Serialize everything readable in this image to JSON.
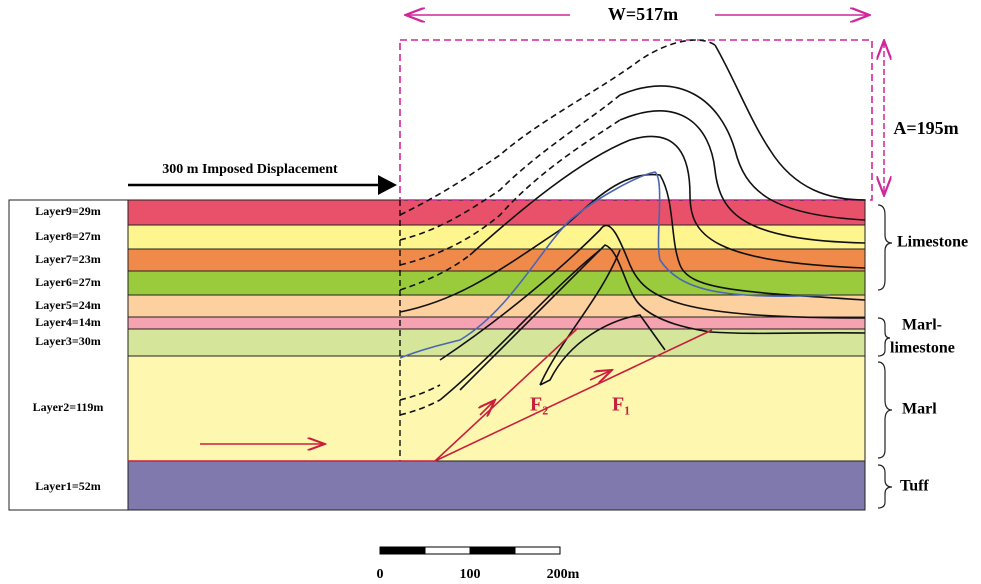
{
  "header": {
    "width_label": "W=517m",
    "amplitude_label": "A=195m",
    "displacement_label": "300 m Imposed Displacement"
  },
  "layers": [
    "Layer9=29m",
    "Layer8=27m",
    "Layer7=23m",
    "Layer6=27m",
    "Layer5=24m",
    "Layer4=14m",
    "Layer3=30m",
    "Layer2=119m",
    "Layer1=52m"
  ],
  "lithology": [
    "Limestone",
    "Marl-",
    "limestone",
    "Marl",
    "Tuff"
  ],
  "faults": [
    "F₂",
    "F₁"
  ],
  "scale": [
    "0",
    "100",
    "200m"
  ]
}
